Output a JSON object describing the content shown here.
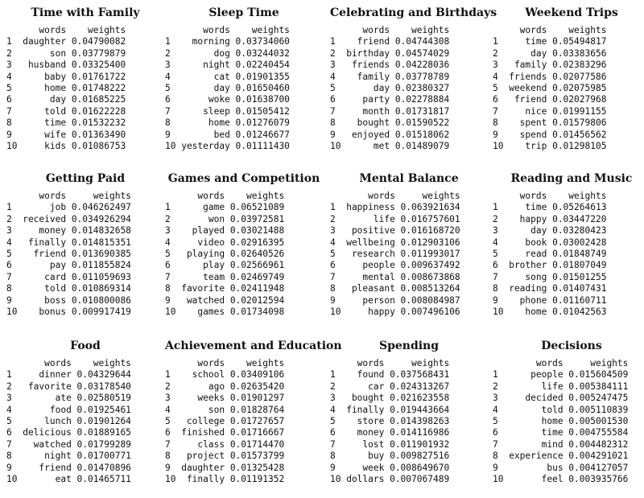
{
  "panels": [
    {
      "title": "Time with Family",
      "header": [
        "words",
        "weights"
      ],
      "rows": [
        [
          "daughter",
          "0.04790082"
        ],
        [
          "son",
          "0.03779879"
        ],
        [
          "husband",
          "0.03325400"
        ],
        [
          "baby",
          "0.01761722"
        ],
        [
          "home",
          "0.01748222"
        ],
        [
          "day",
          "0.01685225"
        ],
        [
          "told",
          "0.01622228"
        ],
        [
          "time",
          "0.01532232"
        ],
        [
          "wife",
          "0.01363490"
        ],
        [
          "kids",
          "0.01086753"
        ]
      ]
    },
    {
      "title": "Sleep Time",
      "header": [
        "words",
        "weights"
      ],
      "rows": [
        [
          "morning",
          "0.03734060"
        ],
        [
          "dog",
          "0.03244032"
        ],
        [
          "night",
          "0.02240454"
        ],
        [
          "cat",
          "0.01901355"
        ],
        [
          "day",
          "0.01650460"
        ],
        [
          "woke",
          "0.01638700"
        ],
        [
          "sleep",
          "0.01505412"
        ],
        [
          "home",
          "0.01276079"
        ],
        [
          "bed",
          "0.01246677"
        ],
        [
          "yesterday",
          "0.01111430"
        ]
      ]
    },
    {
      "title": "Celebrating and Birthdays",
      "header": [
        "words",
        "weights"
      ],
      "rows": [
        [
          "friend",
          "0.04744308"
        ],
        [
          "birthday",
          "0.04574029"
        ],
        [
          "friends",
          "0.04228036"
        ],
        [
          "family",
          "0.03778789"
        ],
        [
          "day",
          "0.02380327"
        ],
        [
          "party",
          "0.02278884"
        ],
        [
          "month",
          "0.01731817"
        ],
        [
          "bought",
          "0.01590522"
        ],
        [
          "enjoyed",
          "0.01518062"
        ],
        [
          "met",
          "0.01489079"
        ]
      ]
    },
    {
      "title": "Weekend Trips",
      "header": [
        "words",
        "weights"
      ],
      "rows": [
        [
          "time",
          "0.05494817"
        ],
        [
          "day",
          "0.03383656"
        ],
        [
          "family",
          "0.02383296"
        ],
        [
          "friends",
          "0.02077586"
        ],
        [
          "weekend",
          "0.02075985"
        ],
        [
          "friend",
          "0.02027968"
        ],
        [
          "nice",
          "0.01991155"
        ],
        [
          "spent",
          "0.01579806"
        ],
        [
          "spend",
          "0.01456562"
        ],
        [
          "trip",
          "0.01298105"
        ]
      ]
    },
    {
      "title": "Getting Paid",
      "header": [
        "words",
        "weights"
      ],
      "rows": [
        [
          "job",
          "0.046262497"
        ],
        [
          "received",
          "0.034926294"
        ],
        [
          "money",
          "0.014832658"
        ],
        [
          "finally",
          "0.014815351"
        ],
        [
          "friend",
          "0.013690385"
        ],
        [
          "pay",
          "0.011855824"
        ],
        [
          "card",
          "0.011059693"
        ],
        [
          "told",
          "0.010869314"
        ],
        [
          "boss",
          "0.010800086"
        ],
        [
          "bonus",
          "0.009917419"
        ]
      ]
    },
    {
      "title": "Games and Competition",
      "header": [
        "words",
        "weights"
      ],
      "rows": [
        [
          "game",
          "0.06521089"
        ],
        [
          "won",
          "0.03972581"
        ],
        [
          "played",
          "0.03021488"
        ],
        [
          "video",
          "0.02916395"
        ],
        [
          "playing",
          "0.02640526"
        ],
        [
          "play",
          "0.02566961"
        ],
        [
          "team",
          "0.02469749"
        ],
        [
          "favorite",
          "0.02411948"
        ],
        [
          "watched",
          "0.02012594"
        ],
        [
          "games",
          "0.01734098"
        ]
      ]
    },
    {
      "title": "Mental Balance",
      "header": [
        "words",
        "weights"
      ],
      "rows": [
        [
          "happiness",
          "0.063921634"
        ],
        [
          "life",
          "0.016757601"
        ],
        [
          "positive",
          "0.016168720"
        ],
        [
          "wellbeing",
          "0.012903106"
        ],
        [
          "research",
          "0.011993017"
        ],
        [
          "people",
          "0.009637492"
        ],
        [
          "mental",
          "0.008673868"
        ],
        [
          "pleasant",
          "0.008513264"
        ],
        [
          "person",
          "0.008084987"
        ],
        [
          "happy",
          "0.007496106"
        ]
      ]
    },
    {
      "title": "Reading and Music",
      "header": [
        "words",
        "weights"
      ],
      "rows": [
        [
          "time",
          "0.05264613"
        ],
        [
          "happy",
          "0.03447220"
        ],
        [
          "day",
          "0.03280423"
        ],
        [
          "book",
          "0.03002428"
        ],
        [
          "read",
          "0.01848749"
        ],
        [
          "brother",
          "0.01807049"
        ],
        [
          "song",
          "0.01501255"
        ],
        [
          "reading",
          "0.01407431"
        ],
        [
          "phone",
          "0.01160711"
        ],
        [
          "home",
          "0.01042563"
        ]
      ]
    },
    {
      "title": "Food",
      "header": [
        "words",
        "weights"
      ],
      "rows": [
        [
          "dinner",
          "0.04329644"
        ],
        [
          "favorite",
          "0.03178540"
        ],
        [
          "ate",
          "0.02580519"
        ],
        [
          "food",
          "0.01925461"
        ],
        [
          "lunch",
          "0.01901264"
        ],
        [
          "delicious",
          "0.01889165"
        ],
        [
          "watched",
          "0.01799289"
        ],
        [
          "night",
          "0.01700771"
        ],
        [
          "friend",
          "0.01470896"
        ],
        [
          "eat",
          "0.01465711"
        ]
      ]
    },
    {
      "title": "Achievement and Education",
      "header": [
        "words",
        "weights"
      ],
      "rows": [
        [
          "school",
          "0.03409106"
        ],
        [
          "ago",
          "0.02635420"
        ],
        [
          "weeks",
          "0.01901297"
        ],
        [
          "son",
          "0.01828764"
        ],
        [
          "college",
          "0.01727657"
        ],
        [
          "finished",
          "0.01716667"
        ],
        [
          "class",
          "0.01714470"
        ],
        [
          "project",
          "0.01573799"
        ],
        [
          "daughter",
          "0.01325428"
        ],
        [
          "finally",
          "0.01191352"
        ]
      ]
    },
    {
      "title": "Spending",
      "header": [
        "words",
        "weights"
      ],
      "rows": [
        [
          "found",
          "0.037568431"
        ],
        [
          "car",
          "0.024313267"
        ],
        [
          "bought",
          "0.021623558"
        ],
        [
          "finally",
          "0.019443664"
        ],
        [
          "store",
          "0.014398263"
        ],
        [
          "money",
          "0.014116986"
        ],
        [
          "lost",
          "0.011901932"
        ],
        [
          "buy",
          "0.009827516"
        ],
        [
          "week",
          "0.008649670"
        ],
        [
          "dollars",
          "0.007067489"
        ]
      ]
    },
    {
      "title": "Decisions",
      "header": [
        "words",
        "weights"
      ],
      "rows": [
        [
          "people",
          "0.015604509"
        ],
        [
          "life",
          "0.005384111"
        ],
        [
          "decided",
          "0.005247475"
        ],
        [
          "told",
          "0.005110839"
        ],
        [
          "home",
          "0.005001530"
        ],
        [
          "time",
          "0.004755584"
        ],
        [
          "mind",
          "0.004482312"
        ],
        [
          "experience",
          "0.004291021"
        ],
        [
          "bus",
          "0.004127057"
        ],
        [
          "feel",
          "0.003935766"
        ]
      ]
    }
  ]
}
